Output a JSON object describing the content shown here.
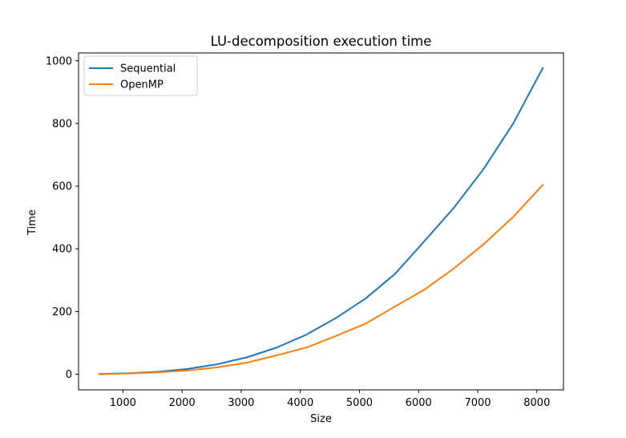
{
  "chart_data": {
    "type": "line",
    "title": "LU-decomposition execution time",
    "xlabel": "Size",
    "ylabel": "Time",
    "xlim": [
      250,
      8450
    ],
    "ylim": [
      -50,
      1025
    ],
    "xticks": [
      1000,
      2000,
      3000,
      4000,
      5000,
      6000,
      7000,
      8000
    ],
    "yticks": [
      0,
      200,
      400,
      600,
      800,
      1000
    ],
    "xtick_labels": [
      "1000",
      "2000",
      "3000",
      "4000",
      "5000",
      "6000",
      "7000",
      "8000"
    ],
    "ytick_labels": [
      "0",
      "200",
      "400",
      "600",
      "800",
      "1000"
    ],
    "grid": false,
    "legend": {
      "placement": "top-left"
    },
    "series": [
      {
        "name": "Sequential",
        "color": "#1f77b4",
        "x": [
          600,
          1100,
          1600,
          2100,
          2600,
          3100,
          3600,
          4100,
          4600,
          5100,
          5600,
          6100,
          6600,
          7100,
          7600,
          8100
        ],
        "y": [
          1,
          3,
          8,
          17,
          32,
          54,
          85,
          126,
          179,
          241,
          320,
          425,
          532,
          655,
          800,
          977
        ]
      },
      {
        "name": "OpenMP",
        "color": "#ff7f0e",
        "x": [
          600,
          1100,
          1600,
          2100,
          2600,
          3100,
          3600,
          4100,
          4600,
          5100,
          5600,
          6100,
          6600,
          7100,
          7600,
          8100
        ],
        "y": [
          0,
          2,
          6,
          12,
          22,
          37,
          60,
          85,
          122,
          161,
          216,
          270,
          338,
          415,
          502,
          604
        ]
      }
    ]
  }
}
